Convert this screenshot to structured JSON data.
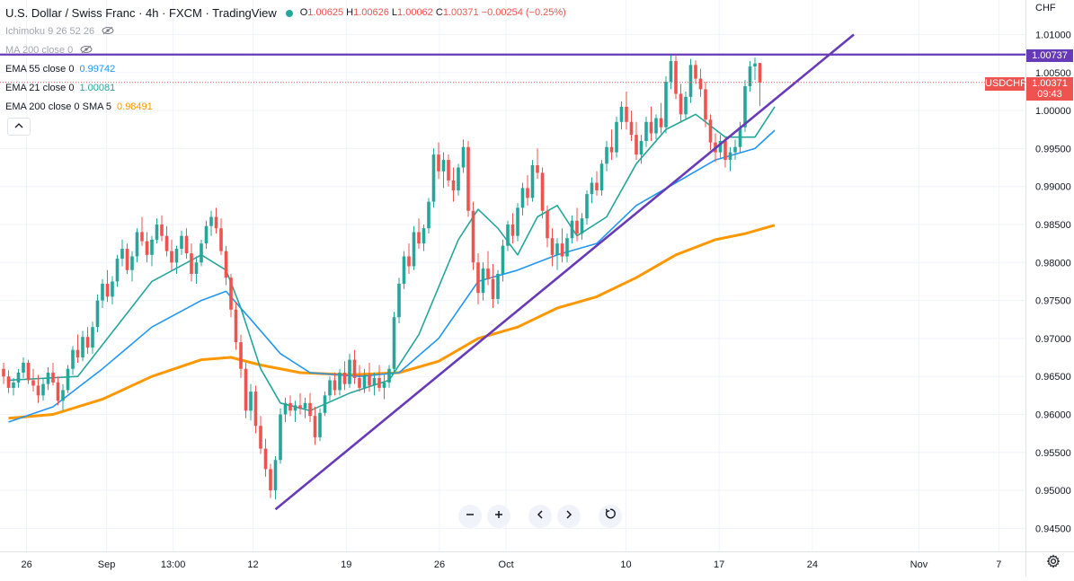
{
  "header": {
    "title": "U.S. Dollar / Swiss Franc · 4h · FXCM · TradingView",
    "ohlc": {
      "o_label": "O",
      "o": "1.00625",
      "h_label": "H",
      "h": "1.00626",
      "l_label": "L",
      "l": "1.00062",
      "c_label": "C",
      "c": "1.00371",
      "change": "−0.00254 (−0.25%)"
    }
  },
  "indicators": {
    "ichimoku": {
      "label": "Ichimoku 9 26 52 26"
    },
    "ma200": {
      "label": "MA 200 close 0"
    },
    "ema55": {
      "label": "EMA 55 close 0",
      "value": "0.99742",
      "color": "#2196f3"
    },
    "ema21": {
      "label": "EMA 21 close 0",
      "value": "1.00081",
      "color": "#26a69a"
    },
    "ema200sma": {
      "label": "EMA 200 close 0 SMA 5",
      "value": "0.98491",
      "color": "#ff9800"
    }
  },
  "collapse_icon": "chevron-up-icon",
  "price_axis": {
    "currency": "CHF",
    "resistance_label": "1.00737",
    "symbol_label": "USDCHF",
    "last_price_label": "1.00371",
    "countdown": "09:43"
  },
  "controls": [
    "zoom-out-icon",
    "zoom-in-icon",
    "scroll-left-icon",
    "scroll-right-icon",
    "reset-icon"
  ],
  "settings_icon": "gear-icon",
  "colors": {
    "up": "#26a69a",
    "down": "#ef5350",
    "trendline": "#673ab7",
    "ema21": "#26a69a",
    "ema55": "#2196f3",
    "ema200": "#ff9800",
    "resistance_tag": "#673ab7",
    "symbol_tag": "#ef5350"
  },
  "chart_data": {
    "type": "candlestick",
    "symbol": "USDCHF",
    "timeframe": "4h",
    "xlim": [
      "2021-08-24",
      "2021-11-09"
    ],
    "ylim": [
      0.943,
      1.0125
    ],
    "x_ticks": [
      {
        "label": "26",
        "date": "2021-08-26"
      },
      {
        "label": "Sep",
        "date": "2021-09-01"
      },
      {
        "label": "13:00",
        "date": "2021-09-06"
      },
      {
        "label": "12",
        "date": "2021-09-12"
      },
      {
        "label": "19",
        "date": "2021-09-19"
      },
      {
        "label": "26",
        "date": "2021-09-26"
      },
      {
        "label": "Oct",
        "date": "2021-10-01"
      },
      {
        "label": "10",
        "date": "2021-10-10"
      },
      {
        "label": "17",
        "date": "2021-10-17"
      },
      {
        "label": "24",
        "date": "2021-10-24"
      },
      {
        "label": "Nov",
        "date": "2021-11-01"
      },
      {
        "label": "7",
        "date": "2021-11-07"
      }
    ],
    "y_ticks": [
      "1.01000",
      "1.00500",
      "1.00000",
      "0.99500",
      "0.99000",
      "0.98500",
      "0.98000",
      "0.97500",
      "0.97000",
      "0.96500",
      "0.96000",
      "0.95500",
      "0.95000",
      "0.94500"
    ],
    "candles": [
      [
        0.966,
        0.9668,
        0.964,
        0.965
      ],
      [
        0.965,
        0.9658,
        0.9628,
        0.9635
      ],
      [
        0.9635,
        0.9648,
        0.9625,
        0.9642
      ],
      [
        0.9642,
        0.966,
        0.9635,
        0.9655
      ],
      [
        0.9655,
        0.9675,
        0.9648,
        0.9668
      ],
      [
        0.9668,
        0.9672,
        0.964,
        0.9645
      ],
      [
        0.9645,
        0.966,
        0.963,
        0.9638
      ],
      [
        0.9638,
        0.9652,
        0.9615,
        0.9625
      ],
      [
        0.9625,
        0.9648,
        0.9618,
        0.964
      ],
      [
        0.964,
        0.9662,
        0.9632,
        0.9655
      ],
      [
        0.9655,
        0.9668,
        0.9638,
        0.9642
      ],
      [
        0.9642,
        0.965,
        0.9612,
        0.9618
      ],
      [
        0.9618,
        0.964,
        0.9605,
        0.9632
      ],
      [
        0.9632,
        0.9665,
        0.9628,
        0.966
      ],
      [
        0.966,
        0.969,
        0.9652,
        0.9685
      ],
      [
        0.9685,
        0.9705,
        0.9668,
        0.9675
      ],
      [
        0.9675,
        0.971,
        0.967,
        0.9702
      ],
      [
        0.9702,
        0.9715,
        0.968,
        0.9688
      ],
      [
        0.9688,
        0.9722,
        0.968,
        0.9715
      ],
      [
        0.9715,
        0.9758,
        0.9708,
        0.975
      ],
      [
        0.975,
        0.9778,
        0.974,
        0.9772
      ],
      [
        0.9772,
        0.979,
        0.9748,
        0.9755
      ],
      [
        0.9755,
        0.9782,
        0.9745,
        0.9775
      ],
      [
        0.9775,
        0.981,
        0.9768,
        0.9805
      ],
      [
        0.9805,
        0.983,
        0.9795,
        0.9818
      ],
      [
        0.9818,
        0.9825,
        0.9785,
        0.979
      ],
      [
        0.979,
        0.9815,
        0.9775,
        0.9808
      ],
      [
        0.9808,
        0.9845,
        0.98,
        0.984
      ],
      [
        0.984,
        0.986,
        0.9822,
        0.9828
      ],
      [
        0.9828,
        0.984,
        0.98,
        0.981
      ],
      [
        0.981,
        0.9835,
        0.9795,
        0.983
      ],
      [
        0.983,
        0.9858,
        0.9825,
        0.985
      ],
      [
        0.985,
        0.9862,
        0.9828,
        0.9835
      ],
      [
        0.9835,
        0.9848,
        0.9808,
        0.9815
      ],
      [
        0.9815,
        0.983,
        0.979,
        0.98
      ],
      [
        0.98,
        0.9822,
        0.9785,
        0.9818
      ],
      [
        0.9818,
        0.9842,
        0.981,
        0.9835
      ],
      [
        0.9835,
        0.9845,
        0.9805,
        0.9812
      ],
      [
        0.9812,
        0.9825,
        0.9775,
        0.9785
      ],
      [
        0.9785,
        0.9808,
        0.9772,
        0.98
      ],
      [
        0.98,
        0.983,
        0.9795,
        0.9825
      ],
      [
        0.9825,
        0.9855,
        0.9818,
        0.9848
      ],
      [
        0.9848,
        0.9868,
        0.9835,
        0.986
      ],
      [
        0.986,
        0.9872,
        0.9838,
        0.9845
      ],
      [
        0.9845,
        0.9858,
        0.981,
        0.9815
      ],
      [
        0.9815,
        0.9822,
        0.977,
        0.978
      ],
      [
        0.978,
        0.9785,
        0.9728,
        0.9738
      ],
      [
        0.9738,
        0.9748,
        0.9685,
        0.9695
      ],
      [
        0.9695,
        0.9705,
        0.9648,
        0.966
      ],
      [
        0.966,
        0.9668,
        0.9595,
        0.9605
      ],
      [
        0.9605,
        0.964,
        0.9592,
        0.963
      ],
      [
        0.963,
        0.9638,
        0.9575,
        0.9585
      ],
      [
        0.9585,
        0.9598,
        0.9548,
        0.9555
      ],
      [
        0.9555,
        0.9568,
        0.9518,
        0.9528
      ],
      [
        0.9528,
        0.9535,
        0.949,
        0.95
      ],
      [
        0.95,
        0.9545,
        0.9488,
        0.954
      ],
      [
        0.954,
        0.9608,
        0.9535,
        0.96
      ],
      [
        0.96,
        0.9622,
        0.959,
        0.9615
      ],
      [
        0.9615,
        0.9625,
        0.9598,
        0.9605
      ],
      [
        0.9605,
        0.9618,
        0.959,
        0.9612
      ],
      [
        0.9612,
        0.9628,
        0.96,
        0.9608
      ],
      [
        0.9608,
        0.9622,
        0.9595,
        0.9615
      ],
      [
        0.9615,
        0.9628,
        0.959,
        0.9598
      ],
      [
        0.9598,
        0.961,
        0.956,
        0.957
      ],
      [
        0.957,
        0.9608,
        0.9565,
        0.9602
      ],
      [
        0.9602,
        0.963,
        0.9598,
        0.9625
      ],
      [
        0.9625,
        0.965,
        0.9618,
        0.9645
      ],
      [
        0.9645,
        0.9655,
        0.9625,
        0.9632
      ],
      [
        0.9632,
        0.966,
        0.9625,
        0.9655
      ],
      [
        0.9655,
        0.967,
        0.9632,
        0.964
      ],
      [
        0.964,
        0.968,
        0.9635,
        0.9672
      ],
      [
        0.9672,
        0.9685,
        0.964,
        0.9648
      ],
      [
        0.9648,
        0.9665,
        0.963,
        0.9635
      ],
      [
        0.9635,
        0.966,
        0.9628,
        0.9652
      ],
      [
        0.9652,
        0.9668,
        0.963,
        0.9638
      ],
      [
        0.9638,
        0.9655,
        0.9625,
        0.9648
      ],
      [
        0.9648,
        0.9665,
        0.963,
        0.9635
      ],
      [
        0.9635,
        0.9652,
        0.962,
        0.9642
      ],
      [
        0.9642,
        0.9665,
        0.9635,
        0.966
      ],
      [
        0.966,
        0.9735,
        0.9655,
        0.9728
      ],
      [
        0.9728,
        0.978,
        0.972,
        0.9772
      ],
      [
        0.9772,
        0.9815,
        0.9765,
        0.9808
      ],
      [
        0.9808,
        0.9825,
        0.9785,
        0.9795
      ],
      [
        0.9795,
        0.9848,
        0.979,
        0.984
      ],
      [
        0.984,
        0.9858,
        0.9818,
        0.9825
      ],
      [
        0.9825,
        0.985,
        0.9815,
        0.9845
      ],
      [
        0.9845,
        0.9885,
        0.9838,
        0.988
      ],
      [
        0.988,
        0.995,
        0.9872,
        0.9942
      ],
      [
        0.9942,
        0.9958,
        0.991,
        0.992
      ],
      [
        0.992,
        0.9945,
        0.9898,
        0.9935
      ],
      [
        0.9935,
        0.9942,
        0.99,
        0.9908
      ],
      [
        0.9908,
        0.9925,
        0.988,
        0.9895
      ],
      [
        0.9895,
        0.993,
        0.9888,
        0.9925
      ],
      [
        0.9925,
        0.9962,
        0.9918,
        0.9952
      ],
      [
        0.9952,
        0.996,
        0.986,
        0.9868
      ],
      [
        0.9868,
        0.988,
        0.979,
        0.98
      ],
      [
        0.98,
        0.9812,
        0.9745,
        0.976
      ],
      [
        0.976,
        0.98,
        0.975,
        0.9792
      ],
      [
        0.9792,
        0.9815,
        0.977,
        0.9778
      ],
      [
        0.9778,
        0.9798,
        0.974,
        0.9752
      ],
      [
        0.9752,
        0.979,
        0.9745,
        0.9785
      ],
      [
        0.9785,
        0.983,
        0.9775,
        0.9822
      ],
      [
        0.9822,
        0.9855,
        0.9815,
        0.985
      ],
      [
        0.985,
        0.9865,
        0.9825,
        0.9835
      ],
      [
        0.9835,
        0.9878,
        0.9828,
        0.9872
      ],
      [
        0.9872,
        0.9905,
        0.9862,
        0.9898
      ],
      [
        0.9898,
        0.9915,
        0.9875,
        0.9885
      ],
      [
        0.9885,
        0.9935,
        0.988,
        0.9928
      ],
      [
        0.9928,
        0.995,
        0.991,
        0.9918
      ],
      [
        0.9918,
        0.9925,
        0.9858,
        0.9868
      ],
      [
        0.9868,
        0.9875,
        0.982,
        0.9832
      ],
      [
        0.9832,
        0.9845,
        0.9795,
        0.981
      ],
      [
        0.981,
        0.9832,
        0.979,
        0.9825
      ],
      [
        0.9825,
        0.9845,
        0.98,
        0.9808
      ],
      [
        0.9808,
        0.9838,
        0.98,
        0.9832
      ],
      [
        0.9832,
        0.9862,
        0.9825,
        0.9855
      ],
      [
        0.9855,
        0.9872,
        0.9828,
        0.9838
      ],
      [
        0.9838,
        0.9865,
        0.983,
        0.9858
      ],
      [
        0.9858,
        0.9895,
        0.985,
        0.989
      ],
      [
        0.989,
        0.9912,
        0.9878,
        0.9905
      ],
      [
        0.9905,
        0.992,
        0.9888,
        0.9895
      ],
      [
        0.9895,
        0.9935,
        0.9888,
        0.993
      ],
      [
        0.993,
        0.996,
        0.992,
        0.9952
      ],
      [
        0.9952,
        0.9975,
        0.9935,
        0.9945
      ],
      [
        0.9945,
        0.9992,
        0.9938,
        0.9985
      ],
      [
        0.9985,
        1.0012,
        0.9975,
        1.0005
      ],
      [
        1.0005,
        1.0025,
        0.9975,
        0.9985
      ],
      [
        0.9985,
        1.0,
        0.996,
        0.9968
      ],
      [
        0.9968,
        0.9985,
        0.9935,
        0.9942
      ],
      [
        0.9942,
        0.9968,
        0.993,
        0.996
      ],
      [
        0.996,
        0.9992,
        0.9952,
        0.9985
      ],
      [
        0.9985,
        1.0005,
        0.996,
        0.997
      ],
      [
        0.997,
        0.9995,
        0.9962,
        0.999
      ],
      [
        0.999,
        1.001,
        0.997,
        0.9978
      ],
      [
        0.9978,
        1.0045,
        0.997,
        1.0038
      ],
      [
        1.0038,
        1.0074,
        1.0028,
        1.0065
      ],
      [
        1.0065,
        1.0072,
        1.0015,
        1.0022
      ],
      [
        1.0022,
        1.0035,
        0.9985,
        0.9995
      ],
      [
        0.9995,
        1.0025,
        0.9988,
        1.0018
      ],
      [
        1.0018,
        1.0068,
        1.001,
        1.006
      ],
      [
        1.006,
        1.0066,
        1.0035,
        1.0042
      ],
      [
        1.0042,
        1.0055,
        1.0018,
        1.0028
      ],
      [
        1.0028,
        1.0038,
        0.9978,
        0.9988
      ],
      [
        0.9988,
        0.9995,
        0.9948,
        0.9958
      ],
      [
        0.9958,
        0.997,
        0.9932,
        0.9945
      ],
      [
        0.9945,
        0.9968,
        0.9938,
        0.996
      ],
      [
        0.996,
        0.9965,
        0.9925,
        0.9935
      ],
      [
        0.9935,
        0.9952,
        0.992,
        0.9945
      ],
      [
        0.9945,
        0.9962,
        0.9935,
        0.9952
      ],
      [
        0.9952,
        0.9985,
        0.9945,
        0.9978
      ],
      [
        0.9978,
        1.004,
        0.9972,
        1.0032
      ],
      [
        1.0032,
        1.0065,
        1.0025,
        1.0058
      ],
      [
        1.0058,
        1.007,
        1.004,
        1.0062
      ],
      [
        1.00625,
        1.00626,
        1.00062,
        1.00371
      ]
    ],
    "ema21": [
      [
        1,
        0.9645
      ],
      [
        15,
        0.965
      ],
      [
        30,
        0.9775
      ],
      [
        40,
        0.981
      ],
      [
        45,
        0.979
      ],
      [
        48,
        0.974
      ],
      [
        52,
        0.966
      ],
      [
        56,
        0.9615
      ],
      [
        62,
        0.9605
      ],
      [
        70,
        0.9628
      ],
      [
        78,
        0.9645
      ],
      [
        84,
        0.9705
      ],
      [
        92,
        0.983
      ],
      [
        96,
        0.987
      ],
      [
        100,
        0.9845
      ],
      [
        104,
        0.981
      ],
      [
        108,
        0.986
      ],
      [
        112,
        0.9875
      ],
      [
        116,
        0.9835
      ],
      [
        122,
        0.986
      ],
      [
        128,
        0.993
      ],
      [
        134,
        0.9975
      ],
      [
        140,
        0.9995
      ],
      [
        146,
        0.9965
      ],
      [
        152,
        0.9965
      ],
      [
        156,
        1.0005
      ]
    ],
    "ema55": [
      [
        1,
        0.959
      ],
      [
        10,
        0.961
      ],
      [
        20,
        0.966
      ],
      [
        30,
        0.9715
      ],
      [
        40,
        0.975
      ],
      [
        45,
        0.9762
      ],
      [
        50,
        0.9725
      ],
      [
        56,
        0.968
      ],
      [
        62,
        0.9655
      ],
      [
        72,
        0.965
      ],
      [
        80,
        0.9655
      ],
      [
        88,
        0.97
      ],
      [
        96,
        0.9775
      ],
      [
        104,
        0.979
      ],
      [
        112,
        0.981
      ],
      [
        120,
        0.9825
      ],
      [
        128,
        0.9875
      ],
      [
        136,
        0.9905
      ],
      [
        144,
        0.9935
      ],
      [
        152,
        0.995
      ],
      [
        156,
        0.9974
      ]
    ],
    "ema200sma5": [
      [
        1,
        0.9595
      ],
      [
        10,
        0.96
      ],
      [
        20,
        0.962
      ],
      [
        30,
        0.965
      ],
      [
        40,
        0.9672
      ],
      [
        46,
        0.9675
      ],
      [
        52,
        0.9665
      ],
      [
        60,
        0.9655
      ],
      [
        70,
        0.9652
      ],
      [
        80,
        0.9655
      ],
      [
        88,
        0.967
      ],
      [
        96,
        0.97
      ],
      [
        104,
        0.9715
      ],
      [
        112,
        0.974
      ],
      [
        120,
        0.9755
      ],
      [
        128,
        0.978
      ],
      [
        136,
        0.981
      ],
      [
        144,
        0.983
      ],
      [
        150,
        0.9838
      ],
      [
        156,
        0.9849
      ]
    ],
    "trendline": [
      [
        55,
        0.9475
      ],
      [
        172,
        1.01
      ]
    ],
    "resistance": 1.00737
  }
}
